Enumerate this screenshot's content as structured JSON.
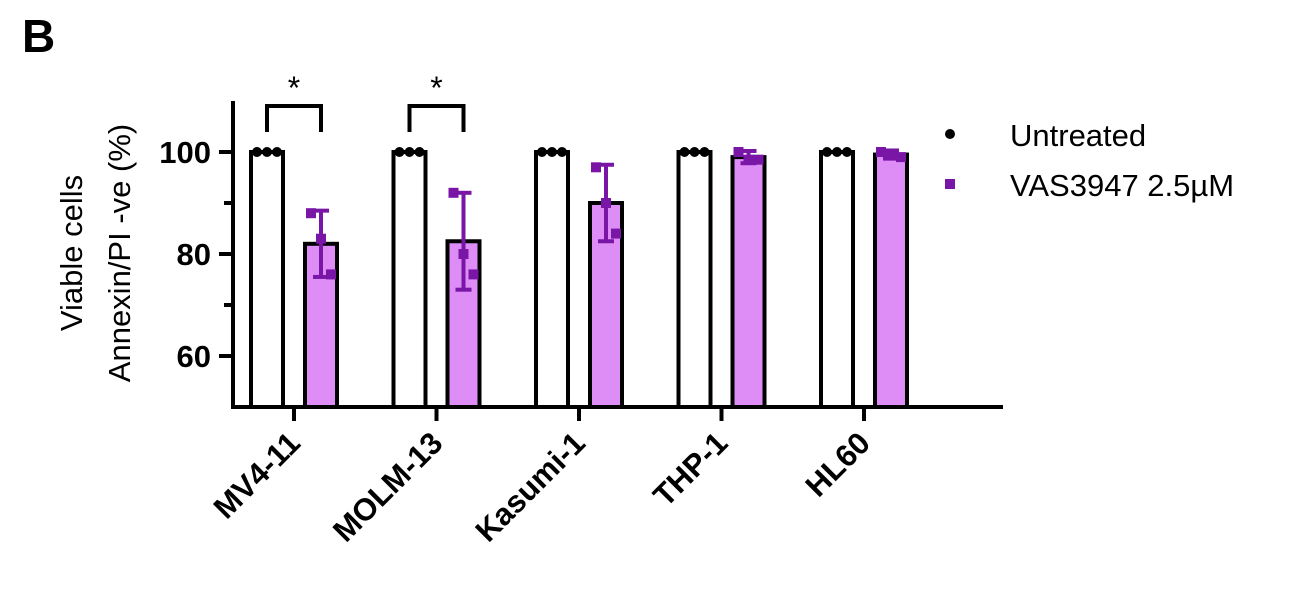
{
  "panel_label": "B",
  "colors": {
    "untreated_fill": "#ffffff",
    "treated_fill": "#de8cf6",
    "treated_marker": "#7a16a6",
    "axis": "#000000"
  },
  "chart_data": {
    "type": "bar",
    "title": "",
    "xlabel": "",
    "ylabel_lines": [
      "Viable cells",
      "Annexin/PI -ve (%)"
    ],
    "ylim": [
      50,
      110
    ],
    "yticks": [
      60,
      80,
      100
    ],
    "categories": [
      "MV4-11",
      "MOLM-13",
      "Kasumi-1",
      "THP-1",
      "HL60"
    ],
    "legend_position": "right",
    "series": [
      {
        "name": "Untreated",
        "marker": "circle",
        "values": [
          100,
          100,
          100,
          100,
          100
        ],
        "errors": [
          0,
          0,
          0,
          0,
          0
        ],
        "points": [
          [
            100,
            100,
            100
          ],
          [
            100,
            100,
            100
          ],
          [
            100,
            100,
            100
          ],
          [
            100,
            100,
            100
          ],
          [
            100,
            100,
            100
          ]
        ]
      },
      {
        "name": "VAS3947 2.5µM",
        "marker": "square",
        "values": [
          82,
          82.5,
          90,
          99,
          99.5
        ],
        "errors": [
          6.5,
          9.5,
          7.5,
          1.2,
          0.8
        ],
        "points": [
          [
            88,
            83,
            76
          ],
          [
            92,
            80,
            76
          ],
          [
            97,
            90,
            84
          ],
          [
            100,
            98.5,
            98.5
          ],
          [
            100,
            99.5,
            99
          ]
        ]
      }
    ],
    "significance": [
      {
        "category": "MV4-11",
        "label": "*"
      },
      {
        "category": "MOLM-13",
        "label": "*"
      }
    ]
  }
}
